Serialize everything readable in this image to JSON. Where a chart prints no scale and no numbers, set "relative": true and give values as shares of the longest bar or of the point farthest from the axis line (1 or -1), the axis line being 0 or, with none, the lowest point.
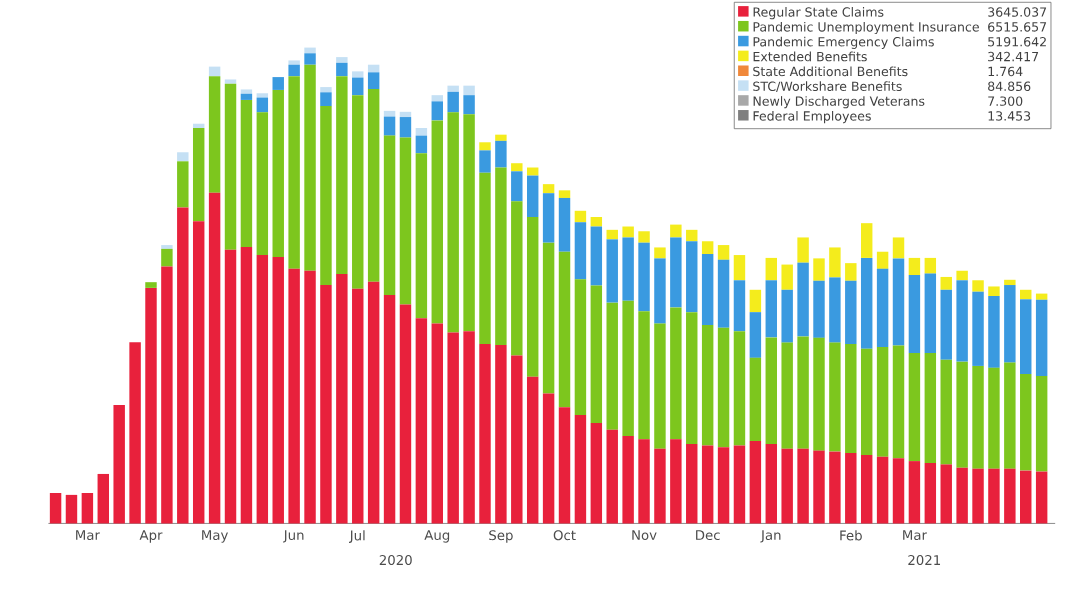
{
  "chart_data": {
    "type": "bar",
    "stacked": true,
    "relative": true,
    "legend": "top right",
    "categories": [
      null,
      null,
      "Mar",
      null,
      null,
      null,
      "Apr",
      null,
      null,
      null,
      "May",
      null,
      null,
      null,
      null,
      "Jun",
      null,
      null,
      null,
      "Jul",
      null,
      null,
      null,
      null,
      "Aug",
      null,
      null,
      null,
      "Sep",
      null,
      null,
      null,
      "Oct",
      null,
      null,
      null,
      null,
      "Nov",
      null,
      null,
      null,
      "Dec",
      null,
      null,
      null,
      "Jan",
      null,
      null,
      null,
      null,
      "Feb",
      null,
      null,
      null,
      "Mar",
      null,
      null,
      null,
      null,
      null,
      null,
      null,
      null
    ],
    "series": [
      {
        "name": "Regular State Claims",
        "color": "#e8213c",
        "values": [
          0.064,
          0.06,
          0.064,
          0.104,
          0.249,
          0.381,
          0.495,
          0.54,
          0.664,
          0.635,
          0.695,
          0.575,
          0.581,
          0.564,
          0.56,
          0.535,
          0.531,
          0.501,
          0.524,
          0.493,
          0.508,
          0.48,
          0.46,
          0.431,
          0.42,
          0.401,
          0.404,
          0.377,
          0.375,
          0.353,
          0.308,
          0.273,
          0.244,
          0.228,
          0.211,
          0.197,
          0.184,
          0.177,
          0.157,
          0.177,
          0.167,
          0.164,
          0.16,
          0.164,
          0.173,
          0.167,
          0.157,
          0.157,
          0.153,
          0.151,
          0.148,
          0.144,
          0.14,
          0.137,
          0.131,
          0.127,
          0.124,
          0.117,
          0.115,
          0.115,
          0.115,
          0.111,
          0.109
        ]
      },
      {
        "name": "Pandemic Unemployment Insurance",
        "color": "#7dc61e",
        "values": [
          0,
          0,
          0,
          0,
          0,
          0,
          0.012,
          0.037,
          0.097,
          0.196,
          0.245,
          0.349,
          0.309,
          0.3,
          0.351,
          0.405,
          0.433,
          0.376,
          0.416,
          0.407,
          0.405,
          0.335,
          0.351,
          0.347,
          0.427,
          0.463,
          0.456,
          0.36,
          0.373,
          0.324,
          0.336,
          0.317,
          0.327,
          0.285,
          0.289,
          0.267,
          0.284,
          0.269,
          0.263,
          0.277,
          0.277,
          0.253,
          0.251,
          0.24,
          0.175,
          0.224,
          0.223,
          0.236,
          0.237,
          0.229,
          0.229,
          0.223,
          0.231,
          0.237,
          0.227,
          0.231,
          0.22,
          0.223,
          0.216,
          0.212,
          0.223,
          0.203,
          0.201
        ]
      },
      {
        "name": "Pandemic Emergency Claims",
        "color": "#3a9ae0",
        "values": [
          0,
          0,
          0,
          0,
          0,
          0,
          0,
          0,
          0,
          0,
          0,
          0,
          0.013,
          0.031,
          0.027,
          0.024,
          0.024,
          0.029,
          0.028,
          0.037,
          0.035,
          0.04,
          0.043,
          0.037,
          0.04,
          0.043,
          0.04,
          0.047,
          0.056,
          0.063,
          0.087,
          0.104,
          0.113,
          0.12,
          0.124,
          0.133,
          0.133,
          0.144,
          0.137,
          0.147,
          0.149,
          0.149,
          0.143,
          0.107,
          0.096,
          0.12,
          0.111,
          0.155,
          0.12,
          0.137,
          0.133,
          0.191,
          0.164,
          0.183,
          0.164,
          0.167,
          0.147,
          0.171,
          0.156,
          0.151,
          0.163,
          0.157,
          0.16
        ]
      },
      {
        "name": "Extended Benefits",
        "color": "#f4ec1c",
        "values": [
          0,
          0,
          0,
          0,
          0,
          0,
          0,
          0,
          0,
          0,
          0,
          0,
          0,
          0,
          0,
          0,
          0,
          0,
          0,
          0,
          0,
          0,
          0,
          0,
          0,
          0,
          0,
          0.017,
          0.013,
          0.017,
          0.017,
          0.019,
          0.016,
          0.024,
          0.02,
          0.02,
          0.023,
          0.024,
          0.023,
          0.027,
          0.024,
          0.027,
          0.031,
          0.053,
          0.047,
          0.047,
          0.053,
          0.053,
          0.047,
          0.063,
          0.037,
          0.073,
          0.036,
          0.044,
          0.036,
          0.033,
          0.027,
          0.02,
          0.024,
          0.02,
          0.011,
          0.02,
          0.013
        ]
      },
      {
        "name": "State Additional Benefits",
        "color": "#f0883a",
        "values": [
          null,
          null,
          null,
          null,
          null,
          null,
          null,
          null,
          null,
          null,
          null,
          null,
          null,
          null,
          null,
          null,
          null,
          null,
          null,
          null,
          null,
          null,
          null,
          null,
          null,
          null,
          null,
          null,
          null,
          null,
          null,
          null,
          null,
          null,
          null,
          null,
          null,
          null,
          null,
          null,
          null,
          null,
          null,
          null,
          null,
          null,
          null,
          null,
          null,
          null,
          null,
          null,
          null,
          null,
          null,
          null,
          null,
          null,
          null,
          null,
          null,
          null,
          null
        ]
      },
      {
        "name": "STC/Workshare Benefits",
        "color": "#c5e0f4",
        "values": [
          0,
          0,
          0,
          0,
          null,
          0,
          0,
          0.008,
          0.019,
          0.009,
          0.02,
          0.009,
          0.009,
          0.009,
          null,
          0.009,
          0.012,
          0.011,
          0.012,
          0.013,
          0.016,
          0.012,
          0.011,
          0.016,
          0.013,
          0.013,
          0.02,
          0,
          0,
          0,
          0,
          0,
          0,
          0,
          0,
          0,
          0,
          0,
          0,
          0,
          0,
          0,
          0,
          0,
          0,
          0,
          0,
          0,
          0,
          0,
          0,
          0,
          0,
          0,
          0,
          0,
          0,
          0,
          0,
          0,
          0,
          0,
          0
        ]
      },
      {
        "name": "Newly Discharged Veterans",
        "color": "#a8a8a8",
        "values": [
          null,
          null,
          null,
          null,
          null,
          null,
          null,
          null,
          null,
          null,
          null,
          null,
          null,
          null,
          null,
          null,
          null,
          null,
          null,
          null,
          null,
          null,
          null,
          null,
          null,
          null,
          null,
          null,
          null,
          null,
          null,
          null,
          null,
          null,
          null,
          null,
          null,
          null,
          null,
          null,
          null,
          null,
          null,
          null,
          null,
          null,
          null,
          null,
          null,
          null,
          null,
          null,
          null,
          null,
          null,
          null,
          null,
          null,
          null,
          null,
          null,
          null,
          null
        ]
      },
      {
        "name": "Federal Employees",
        "color": "#7f7f7f",
        "values": [
          null,
          null,
          null,
          null,
          null,
          null,
          null,
          null,
          null,
          null,
          null,
          null,
          null,
          null,
          null,
          null,
          null,
          null,
          null,
          null,
          null,
          null,
          null,
          null,
          null,
          null,
          null,
          null,
          null,
          null,
          null,
          null,
          null,
          null,
          null,
          null,
          null,
          null,
          null,
          null,
          null,
          null,
          null,
          null,
          null,
          null,
          null,
          null,
          null,
          null,
          null,
          null,
          null,
          null,
          null,
          null,
          null,
          null,
          null,
          null,
          null,
          null,
          null
        ]
      }
    ],
    "annotations": [
      "2020",
      "2021",
      "3645.037",
      "6515.657",
      "5191.642",
      "342.417",
      "1.764",
      "84.856",
      "7.300",
      "13.453"
    ]
  }
}
